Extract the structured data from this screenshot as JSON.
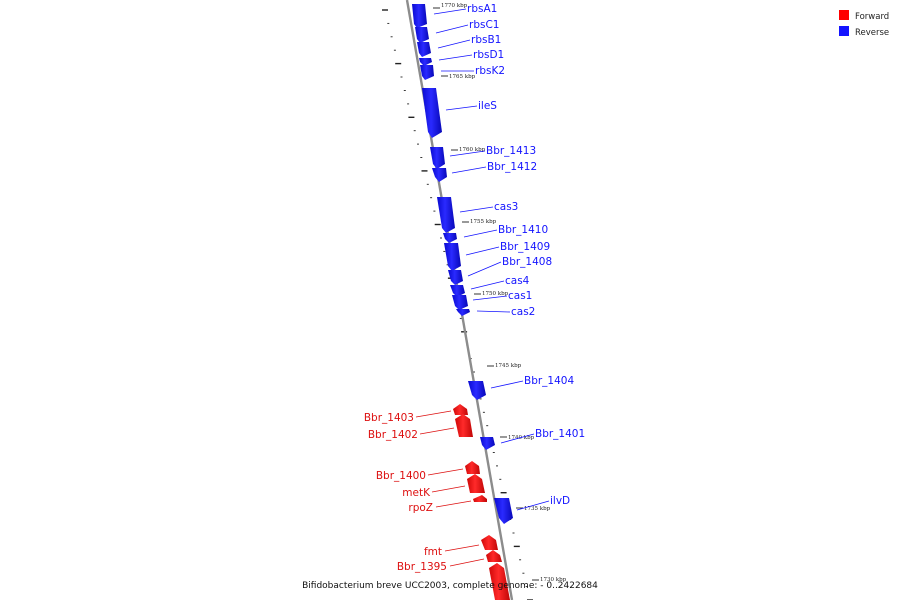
{
  "title": "Bifidobacterium breve UCC2003, complete genome: - 0..2422684",
  "legend": {
    "items": [
      {
        "label": "Forward",
        "color": "#ff0000"
      },
      {
        "label": "Reverse",
        "color": "#1414ff"
      }
    ]
  },
  "colors": {
    "forward": "#ee0f0f",
    "reverse": "#1414ff",
    "backbone": "#888888"
  },
  "scale": {
    "ticks": [
      "1770 kbp",
      "1765 kbp",
      "1760 kbp",
      "1755 kbp",
      "1750 kbp",
      "1745 kbp",
      "1740 kbp",
      "1735 kbp",
      "1730 kbp"
    ]
  },
  "genes": {
    "reverse": [
      "rbsA1",
      "rbsC1",
      "rbsB1",
      "rbsD1",
      "rbsK2",
      "ileS",
      "Bbr_1413",
      "Bbr_1412",
      "cas3",
      "Bbr_1410",
      "Bbr_1409",
      "Bbr_1408",
      "cas4",
      "cas1",
      "cas2",
      "Bbr_1404",
      "Bbr_1401",
      "ilvD"
    ],
    "forward": [
      "Bbr_1403",
      "Bbr_1402",
      "Bbr_1400",
      "metK",
      "rpoZ",
      "fmt",
      "Bbr_1395"
    ]
  }
}
